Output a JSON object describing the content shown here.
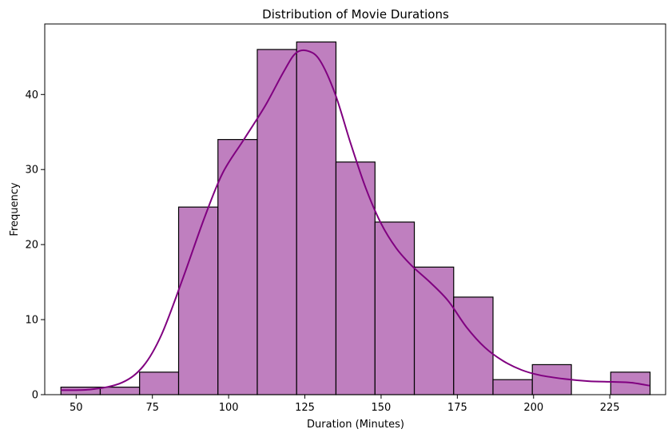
{
  "chart_data": {
    "type": "bar",
    "title": "Distribution of Movie Durations",
    "xlabel": "Duration (Minutes)",
    "ylabel": "Frequency",
    "xlim": [
      39.7,
      243.3
    ],
    "ylim": [
      0,
      49.4
    ],
    "xticks": [
      50,
      75,
      100,
      125,
      150,
      175,
      200,
      225
    ],
    "yticks": [
      0,
      10,
      20,
      30,
      40
    ],
    "bin_edges": [
      45,
      57.9,
      70.8,
      83.6,
      96.5,
      109.4,
      122.3,
      135.2,
      148.0,
      160.9,
      173.8,
      186.7,
      199.6,
      212.4,
      225.3,
      238.2
    ],
    "counts": [
      1,
      1,
      3,
      25,
      34,
      46,
      47,
      31,
      23,
      17,
      13,
      2,
      4,
      0,
      3
    ],
    "bar_color": "#bf7fbf",
    "kde_color": "#800080",
    "kde": {
      "x": [
        45,
        55,
        65,
        72,
        78,
        85,
        92,
        98,
        105,
        112,
        118,
        122,
        126,
        130,
        135,
        140,
        145,
        150,
        155,
        160,
        166,
        172,
        178,
        184,
        190,
        196,
        202,
        210,
        218,
        226,
        232,
        238
      ],
      "y": [
        0.6,
        0.7,
        1.6,
        3.8,
        8.0,
        15.5,
        23.5,
        29.5,
        34.0,
        38.5,
        43.0,
        45.5,
        45.8,
        44.5,
        40.0,
        33.5,
        27.5,
        22.8,
        19.5,
        17.2,
        15.0,
        12.5,
        9.0,
        6.3,
        4.5,
        3.3,
        2.6,
        2.1,
        1.8,
        1.7,
        1.6,
        1.2
      ]
    }
  }
}
